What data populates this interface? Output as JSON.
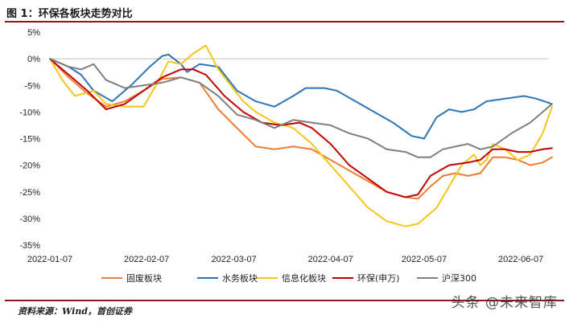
{
  "title": "图 1：环保各板块走势对比",
  "source": "资料来源：Wind，首创证券",
  "watermark": "头条 @未来智库",
  "chart_data": {
    "type": "line",
    "ylim": [
      -35,
      5
    ],
    "yticks": [
      5,
      0,
      -5,
      -10,
      -15,
      -20,
      -25,
      -30,
      -35
    ],
    "ytick_labels": [
      "5%",
      "0%",
      "-5%",
      "-10%",
      "-15%",
      "-20%",
      "-25%",
      "-30%",
      "-35%"
    ],
    "xlim": [
      0,
      160
    ],
    "xticks": [
      {
        "x": 0,
        "label": "2022-01-07"
      },
      {
        "x": 31,
        "label": "2022-02-07"
      },
      {
        "x": 59,
        "label": "2022-03-07"
      },
      {
        "x": 90,
        "label": "2022-04-07"
      },
      {
        "x": 120,
        "label": "2022-05-07"
      },
      {
        "x": 151,
        "label": "2022-06-07"
      }
    ],
    "grid": false,
    "legend": "bottom",
    "series": [
      {
        "name": "固废板块",
        "color": "#ed7d31",
        "points": [
          [
            0,
            0
          ],
          [
            6,
            -3.5
          ],
          [
            12,
            -6.5
          ],
          [
            18,
            -9
          ],
          [
            24,
            -8
          ],
          [
            30,
            -6
          ],
          [
            36,
            -3.8
          ],
          [
            42,
            -3.5
          ],
          [
            48,
            -4.5
          ],
          [
            54,
            -9.5
          ],
          [
            60,
            -13
          ],
          [
            66,
            -16.5
          ],
          [
            72,
            -17
          ],
          [
            78,
            -16.5
          ],
          [
            84,
            -17
          ],
          [
            90,
            -19
          ],
          [
            96,
            -21
          ],
          [
            102,
            -23
          ],
          [
            108,
            -25
          ],
          [
            114,
            -26
          ],
          [
            118,
            -26.3
          ],
          [
            122,
            -24
          ],
          [
            126,
            -22
          ],
          [
            130,
            -21.5
          ],
          [
            134,
            -22
          ],
          [
            138,
            -21.5
          ],
          [
            142,
            -18.5
          ],
          [
            146,
            -18.5
          ],
          [
            150,
            -19
          ],
          [
            154,
            -20
          ],
          [
            158,
            -19.5
          ],
          [
            161,
            -18.5
          ]
        ]
      },
      {
        "name": "水务板块",
        "color": "#2e75b6",
        "points": [
          [
            0,
            0
          ],
          [
            6,
            -1.5
          ],
          [
            10,
            -3
          ],
          [
            14,
            -6
          ],
          [
            20,
            -8
          ],
          [
            26,
            -5
          ],
          [
            32,
            -1.5
          ],
          [
            36,
            0.5
          ],
          [
            38,
            0.8
          ],
          [
            42,
            -1
          ],
          [
            44,
            -2.5
          ],
          [
            48,
            -1
          ],
          [
            54,
            -1.5
          ],
          [
            60,
            -6
          ],
          [
            66,
            -8
          ],
          [
            72,
            -9
          ],
          [
            78,
            -7
          ],
          [
            82,
            -5.5
          ],
          [
            88,
            -5.5
          ],
          [
            92,
            -6
          ],
          [
            98,
            -8
          ],
          [
            104,
            -10
          ],
          [
            110,
            -12
          ],
          [
            116,
            -14.5
          ],
          [
            120,
            -15
          ],
          [
            124,
            -11
          ],
          [
            128,
            -9.5
          ],
          [
            132,
            -10
          ],
          [
            136,
            -9.5
          ],
          [
            140,
            -8
          ],
          [
            146,
            -7.5
          ],
          [
            152,
            -7
          ],
          [
            156,
            -7.5
          ],
          [
            161,
            -8.5
          ]
        ]
      },
      {
        "name": "信息化板块",
        "color": "#f5c518",
        "points": [
          [
            0,
            0
          ],
          [
            4,
            -4
          ],
          [
            8,
            -7
          ],
          [
            14,
            -6
          ],
          [
            18,
            -8.5
          ],
          [
            24,
            -9
          ],
          [
            30,
            -9
          ],
          [
            34,
            -5
          ],
          [
            38,
            -0.5
          ],
          [
            42,
            -1
          ],
          [
            46,
            1
          ],
          [
            50,
            2.5
          ],
          [
            54,
            -2
          ],
          [
            58,
            -5
          ],
          [
            62,
            -8
          ],
          [
            66,
            -10
          ],
          [
            72,
            -12
          ],
          [
            78,
            -13
          ],
          [
            84,
            -16
          ],
          [
            90,
            -20
          ],
          [
            96,
            -24
          ],
          [
            102,
            -28
          ],
          [
            108,
            -30.5
          ],
          [
            114,
            -31.5
          ],
          [
            118,
            -31
          ],
          [
            124,
            -28
          ],
          [
            128,
            -24
          ],
          [
            132,
            -20
          ],
          [
            136,
            -18
          ],
          [
            138,
            -20
          ],
          [
            140,
            -19
          ],
          [
            142,
            -16
          ],
          [
            146,
            -17
          ],
          [
            150,
            -19
          ],
          [
            154,
            -18
          ],
          [
            158,
            -14
          ],
          [
            161,
            -9
          ]
        ]
      },
      {
        "name": "环保(申万)",
        "color": "#c00000",
        "points": [
          [
            0,
            0
          ],
          [
            6,
            -3
          ],
          [
            12,
            -6
          ],
          [
            18,
            -9.5
          ],
          [
            24,
            -8.5
          ],
          [
            30,
            -6
          ],
          [
            36,
            -3.5
          ],
          [
            42,
            -2
          ],
          [
            46,
            -2
          ],
          [
            50,
            -3
          ],
          [
            56,
            -7
          ],
          [
            62,
            -10
          ],
          [
            68,
            -12
          ],
          [
            74,
            -12.5
          ],
          [
            80,
            -12
          ],
          [
            84,
            -13
          ],
          [
            90,
            -16
          ],
          [
            96,
            -20
          ],
          [
            102,
            -22.5
          ],
          [
            108,
            -25
          ],
          [
            114,
            -26
          ],
          [
            118,
            -25.5
          ],
          [
            122,
            -22
          ],
          [
            128,
            -20
          ],
          [
            134,
            -19.5
          ],
          [
            138,
            -19
          ],
          [
            142,
            -17
          ],
          [
            146,
            -17
          ],
          [
            150,
            -17.5
          ],
          [
            154,
            -17.5
          ],
          [
            158,
            -17
          ],
          [
            161,
            -16.8
          ]
        ]
      },
      {
        "name": "沪深300",
        "color": "#7f7f7f",
        "points": [
          [
            0,
            0
          ],
          [
            6,
            -1.5
          ],
          [
            10,
            -2
          ],
          [
            14,
            -1
          ],
          [
            18,
            -4
          ],
          [
            24,
            -5.5
          ],
          [
            30,
            -5
          ],
          [
            36,
            -4.5
          ],
          [
            42,
            -3.5
          ],
          [
            48,
            -4.5
          ],
          [
            54,
            -7
          ],
          [
            60,
            -10.5
          ],
          [
            66,
            -11.5
          ],
          [
            72,
            -13
          ],
          [
            78,
            -11.5
          ],
          [
            84,
            -12
          ],
          [
            90,
            -12.5
          ],
          [
            96,
            -14
          ],
          [
            102,
            -15
          ],
          [
            108,
            -17
          ],
          [
            114,
            -17.5
          ],
          [
            118,
            -18.5
          ],
          [
            122,
            -18.5
          ],
          [
            126,
            -17
          ],
          [
            130,
            -16.5
          ],
          [
            134,
            -16
          ],
          [
            138,
            -17
          ],
          [
            142,
            -16.5
          ],
          [
            148,
            -14
          ],
          [
            154,
            -12
          ],
          [
            161,
            -8.5
          ]
        ]
      }
    ]
  }
}
